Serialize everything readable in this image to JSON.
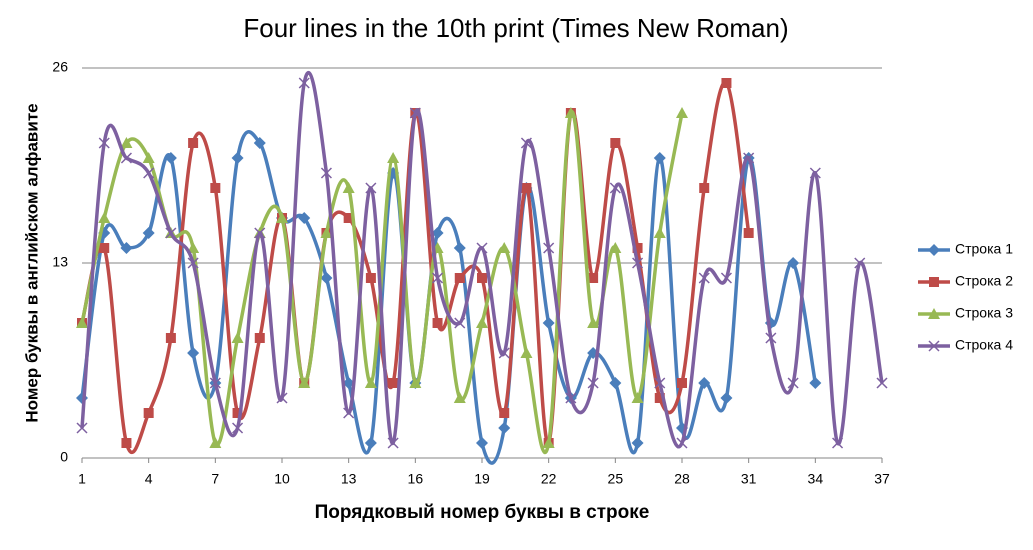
{
  "chart_data": {
    "type": "line",
    "title": "Four lines in the 10th print (Times New Roman)",
    "x_label": "Порядковый номер буквы в строке",
    "y_label": "Номер буквы в английском алфавите",
    "x": [
      1,
      2,
      3,
      4,
      5,
      6,
      7,
      8,
      9,
      10,
      11,
      12,
      13,
      14,
      15,
      16,
      17,
      18,
      19,
      20,
      21,
      22,
      23,
      24,
      25,
      26,
      27,
      28,
      29,
      30,
      31,
      32,
      33,
      34,
      35,
      36,
      37
    ],
    "xlim": [
      1,
      37
    ],
    "xticks": [
      1,
      4,
      7,
      10,
      13,
      16,
      19,
      22,
      25,
      28,
      31,
      34,
      37
    ],
    "ylim": [
      0,
      26
    ],
    "yticks": [
      0,
      13,
      26
    ],
    "grid": true,
    "smooth": true,
    "legend": "right",
    "series": [
      {
        "name": "Строка 1",
        "color": "#4a7ebb",
        "marker": "diamond",
        "values": [
          4,
          15,
          14,
          15,
          20,
          7,
          5,
          20,
          21,
          16,
          16,
          12,
          5,
          1,
          19,
          5,
          15,
          14,
          1,
          2,
          18,
          9,
          4,
          7,
          5,
          1,
          20,
          2,
          5,
          4,
          20,
          9,
          13,
          5,
          null,
          null,
          null
        ]
      },
      {
        "name": "Строка 2",
        "color": "#be4b48",
        "marker": "square",
        "values": [
          9,
          14,
          1,
          3,
          8,
          21,
          18,
          3,
          8,
          16,
          5,
          15,
          16,
          12,
          5,
          23,
          9,
          12,
          12,
          3,
          18,
          1,
          23,
          12,
          21,
          14,
          4,
          5,
          18,
          25,
          15,
          null,
          null,
          null,
          null,
          null,
          null
        ]
      },
      {
        "name": "Строка 3",
        "color": "#98b954",
        "marker": "triangle",
        "values": [
          9,
          16,
          21,
          20,
          15,
          14,
          1,
          8,
          15,
          16,
          5,
          15,
          18,
          5,
          20,
          5,
          14,
          4,
          9,
          14,
          7,
          1,
          23,
          9,
          14,
          4,
          15,
          23,
          null,
          null,
          null,
          null,
          null,
          null,
          null,
          null,
          null
        ]
      },
      {
        "name": "Строка 4",
        "color": "#7d60a0",
        "marker": "x",
        "values": [
          2,
          21,
          20,
          19,
          15,
          13,
          5,
          2,
          15,
          4,
          25,
          19,
          3,
          18,
          1,
          23,
          12,
          9,
          14,
          7,
          21,
          14,
          4,
          5,
          18,
          13,
          5,
          1,
          12,
          12,
          20,
          8,
          5,
          19,
          1,
          13,
          5
        ]
      }
    ]
  }
}
